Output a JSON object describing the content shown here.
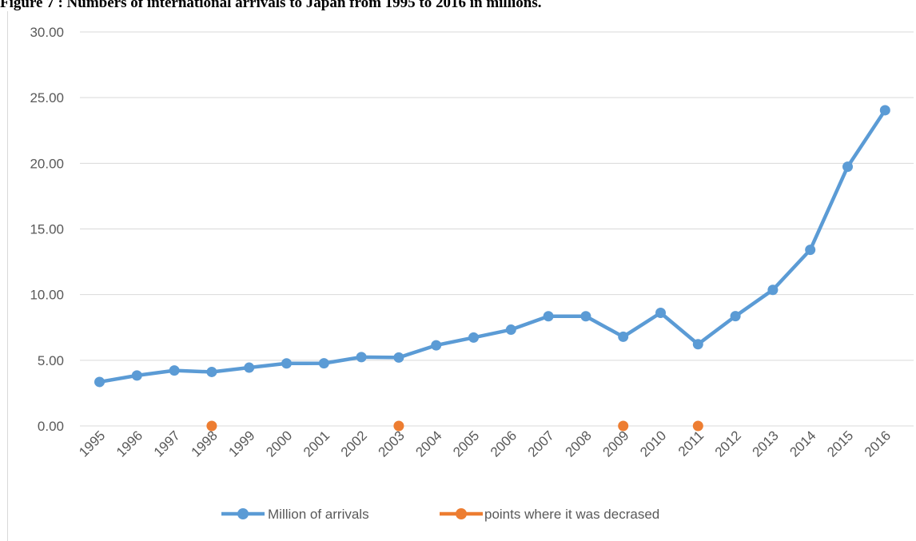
{
  "figure_caption": "Figure 7 : Numbers of international arrivals to Japan from 1995 to 2016 in millions.",
  "chart_data": {
    "type": "line",
    "title": "",
    "xlabel": "",
    "ylabel": "",
    "ylim": [
      0,
      30
    ],
    "y_ticks": [
      "0.00",
      "5.00",
      "10.00",
      "15.00",
      "20.00",
      "25.00",
      "30.00"
    ],
    "y_tick_values": [
      0,
      5,
      10,
      15,
      20,
      25,
      30
    ],
    "categories": [
      "1995",
      "1996",
      "1997",
      "1998",
      "1999",
      "2000",
      "2001",
      "2002",
      "2003",
      "2004",
      "2005",
      "2006",
      "2007",
      "2008",
      "2009",
      "2010",
      "2011",
      "2012",
      "2013",
      "2014",
      "2015",
      "2016"
    ],
    "grid": "horizontal",
    "legend_position": "bottom",
    "series": [
      {
        "name": "Million of arrivals",
        "color": "#5b9bd5",
        "values": [
          3.35,
          3.84,
          4.22,
          4.11,
          4.44,
          4.76,
          4.77,
          5.24,
          5.21,
          6.14,
          6.73,
          7.33,
          8.35,
          8.35,
          6.79,
          8.61,
          6.22,
          8.36,
          10.36,
          13.41,
          19.74,
          24.04
        ]
      },
      {
        "name": "points where it was decrased",
        "color": "#ed7d31",
        "x": [
          "1998",
          "2003",
          "2009",
          "2011"
        ],
        "values": [
          0,
          0,
          0,
          0
        ]
      }
    ]
  }
}
